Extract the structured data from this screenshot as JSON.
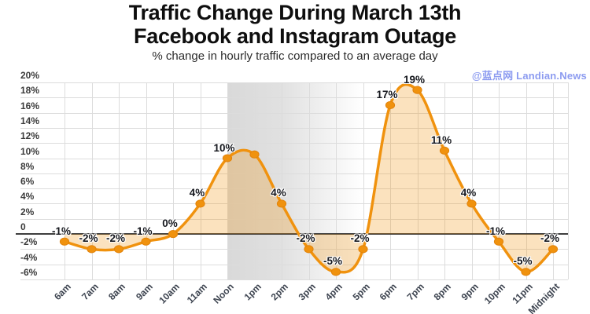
{
  "header": {
    "title_line1": "Traffic Change During March 13th",
    "title_line2": "Facebook and Instagram Outage",
    "subtitle": "% change in hourly traffic compared to an average day",
    "watermark": "@蓝点网 Landian.News"
  },
  "colors": {
    "line": "#F0920E",
    "point_fill": "#F0920E",
    "point_edge": "#E2830A",
    "area_fill": "rgba(240,146,14,0.27)",
    "grid": "#DCDCDC",
    "zero_line": "#3E3E3E",
    "outage_band": "rgba(95,95,95,0.24)",
    "data_label": "#15171D",
    "axis_label": "#3B3B3B",
    "watermark": "#8C9BF0"
  },
  "chart_data": {
    "type": "line",
    "title": "Traffic Change During March 13th Facebook and Instagram Outage",
    "subtitle": "% change in hourly traffic compared to an average day",
    "x": [
      "6am",
      "7am",
      "8am",
      "9am",
      "10am",
      "11am",
      "Noon",
      "1pm",
      "2pm",
      "3pm",
      "4pm",
      "5pm",
      "6pm",
      "7pm",
      "8pm",
      "9pm",
      "10pm",
      "11pm",
      "Midnight"
    ],
    "series": [
      {
        "name": "% change in hourly traffic",
        "values": [
          -1,
          -2,
          -2,
          -1,
          0,
          4,
          10,
          10.5,
          4,
          -2,
          -5,
          -2,
          17,
          19,
          11,
          4,
          -1,
          -5,
          -2
        ]
      }
    ],
    "point_labels": [
      "-1%",
      "-2%",
      "-2%",
      "-1%",
      "0%",
      "4%",
      "10%",
      "",
      "4%",
      "-2%",
      "-5%",
      "-2%",
      "17%",
      "19%",
      "11%",
      "4%",
      "-1%",
      "-5%",
      "-2%"
    ],
    "y_tick_values": [
      20,
      18,
      16,
      14,
      12,
      10,
      8,
      6,
      4,
      2,
      0,
      -2,
      -4,
      -6
    ],
    "y_tick_labels": [
      "20%",
      "18%",
      "16%",
      "14%",
      "12%",
      "10%",
      "8%",
      "6%",
      "4%",
      "2%",
      "0",
      "-2%",
      "-4%",
      "-6%"
    ],
    "ylim": [
      -6,
      20
    ],
    "grid": "on",
    "legend": "none",
    "smooth": true,
    "area": "filled to zero baseline",
    "outage_band": {
      "from": "Noon",
      "to": "5pm",
      "style": "gray gradient fading right"
    }
  }
}
